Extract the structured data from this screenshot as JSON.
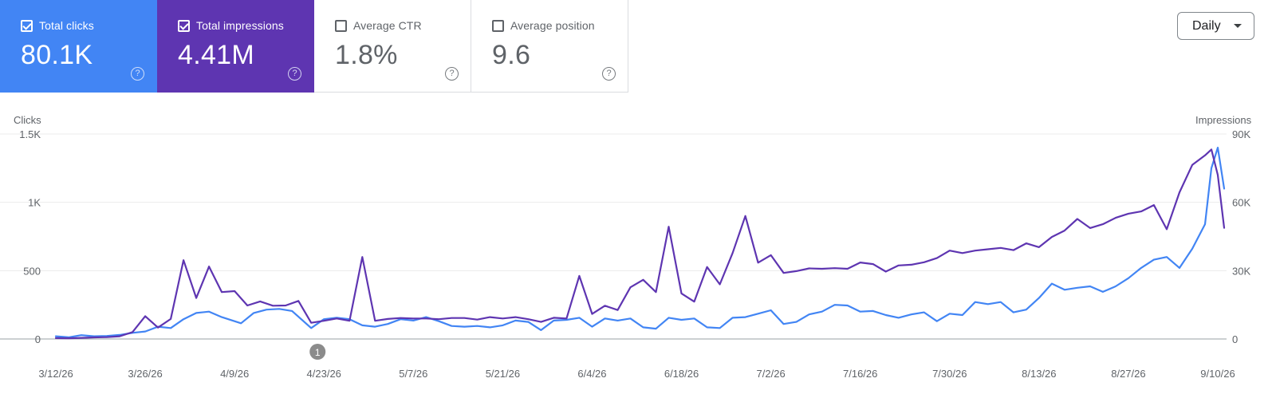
{
  "metrics": [
    {
      "label": "Total clicks",
      "value": "80.1K",
      "checked": true
    },
    {
      "label": "Total impressions",
      "value": "4.41M",
      "checked": true
    },
    {
      "label": "Average CTR",
      "value": "1.8%",
      "checked": false
    },
    {
      "label": "Average position",
      "value": "9.6",
      "checked": false
    }
  ],
  "help_glyph": "?",
  "granularity": {
    "selected": "Daily"
  },
  "colors": {
    "clicks": "#4285f4",
    "impressions": "#5e35b1",
    "grid": "#ececec",
    "axis_text": "#5f6368"
  },
  "icons": {
    "checkbox": "checkbox-icon",
    "help": "help-circle-icon",
    "dropdown": "caret-down-icon",
    "annotation": "annotation-marker"
  },
  "chart_data": {
    "type": "line",
    "ylabel_left": "Clicks",
    "ylabel_right": "Impressions",
    "yticks_left": [
      "0",
      "500",
      "1K",
      "1.5K"
    ],
    "yticks_right": [
      "0",
      "30K",
      "60K",
      "90K"
    ],
    "ylim_left": [
      0,
      1500
    ],
    "ylim_right": [
      0,
      90000
    ],
    "x_start": "2026-03-12",
    "x_end": "2026-09-11",
    "xticks": [
      "3/12/26",
      "3/26/26",
      "4/9/26",
      "4/23/26",
      "5/7/26",
      "5/21/26",
      "6/4/26",
      "6/18/26",
      "7/2/26",
      "7/16/26",
      "7/30/26",
      "8/13/26",
      "8/27/26",
      "9/10/26"
    ],
    "annotation": {
      "label": "1",
      "date": "2026-04-22"
    },
    "grid": true,
    "series": [
      {
        "name": "Clicks",
        "axis": "left",
        "color": "#4285f4",
        "points": [
          [
            "2026-03-12",
            20
          ],
          [
            "2026-03-14",
            12
          ],
          [
            "2026-03-16",
            28
          ],
          [
            "2026-03-18",
            20
          ],
          [
            "2026-03-20",
            22
          ],
          [
            "2026-03-22",
            30
          ],
          [
            "2026-03-24",
            45
          ],
          [
            "2026-03-26",
            55
          ],
          [
            "2026-03-28",
            90
          ],
          [
            "2026-03-30",
            80
          ],
          [
            "2026-04-01",
            145
          ],
          [
            "2026-04-03",
            190
          ],
          [
            "2026-04-05",
            200
          ],
          [
            "2026-04-07",
            160
          ],
          [
            "2026-04-10",
            115
          ],
          [
            "2026-04-12",
            190
          ],
          [
            "2026-04-14",
            215
          ],
          [
            "2026-04-16",
            220
          ],
          [
            "2026-04-18",
            205
          ],
          [
            "2026-04-21",
            80
          ],
          [
            "2026-04-23",
            145
          ],
          [
            "2026-04-25",
            155
          ],
          [
            "2026-04-27",
            145
          ],
          [
            "2026-04-29",
            100
          ],
          [
            "2026-05-01",
            90
          ],
          [
            "2026-05-03",
            110
          ],
          [
            "2026-05-05",
            145
          ],
          [
            "2026-05-07",
            135
          ],
          [
            "2026-05-09",
            160
          ],
          [
            "2026-05-11",
            130
          ],
          [
            "2026-05-13",
            95
          ],
          [
            "2026-05-15",
            90
          ],
          [
            "2026-05-17",
            95
          ],
          [
            "2026-05-19",
            85
          ],
          [
            "2026-05-21",
            100
          ],
          [
            "2026-05-23",
            135
          ],
          [
            "2026-05-25",
            125
          ],
          [
            "2026-05-27",
            65
          ],
          [
            "2026-05-29",
            135
          ],
          [
            "2026-05-31",
            140
          ],
          [
            "2026-06-02",
            155
          ],
          [
            "2026-06-04",
            90
          ],
          [
            "2026-06-06",
            150
          ],
          [
            "2026-06-08",
            135
          ],
          [
            "2026-06-10",
            150
          ],
          [
            "2026-06-12",
            85
          ],
          [
            "2026-06-14",
            75
          ],
          [
            "2026-06-16",
            155
          ],
          [
            "2026-06-18",
            140
          ],
          [
            "2026-06-20",
            150
          ],
          [
            "2026-06-22",
            85
          ],
          [
            "2026-06-24",
            80
          ],
          [
            "2026-06-26",
            155
          ],
          [
            "2026-06-28",
            160
          ],
          [
            "2026-06-30",
            185
          ],
          [
            "2026-07-02",
            210
          ],
          [
            "2026-07-04",
            110
          ],
          [
            "2026-07-06",
            125
          ],
          [
            "2026-07-08",
            180
          ],
          [
            "2026-07-10",
            200
          ],
          [
            "2026-07-12",
            250
          ],
          [
            "2026-07-14",
            245
          ],
          [
            "2026-07-16",
            200
          ],
          [
            "2026-07-18",
            205
          ],
          [
            "2026-07-20",
            175
          ],
          [
            "2026-07-22",
            155
          ],
          [
            "2026-07-24",
            180
          ],
          [
            "2026-07-26",
            195
          ],
          [
            "2026-07-28",
            130
          ],
          [
            "2026-07-30",
            185
          ],
          [
            "2026-08-01",
            175
          ],
          [
            "2026-08-03",
            270
          ],
          [
            "2026-08-05",
            255
          ],
          [
            "2026-08-07",
            270
          ],
          [
            "2026-08-09",
            195
          ],
          [
            "2026-08-11",
            215
          ],
          [
            "2026-08-13",
            300
          ],
          [
            "2026-08-15",
            405
          ],
          [
            "2026-08-17",
            360
          ],
          [
            "2026-08-19",
            375
          ],
          [
            "2026-08-21",
            385
          ],
          [
            "2026-08-23",
            345
          ],
          [
            "2026-08-25",
            385
          ],
          [
            "2026-08-27",
            445
          ],
          [
            "2026-08-29",
            520
          ],
          [
            "2026-08-31",
            580
          ],
          [
            "2026-09-02",
            600
          ],
          [
            "2026-09-04",
            520
          ],
          [
            "2026-09-06",
            660
          ],
          [
            "2026-09-08",
            840
          ],
          [
            "2026-09-09",
            1250
          ],
          [
            "2026-09-10",
            1400
          ],
          [
            "2026-09-11",
            1100
          ]
        ]
      },
      {
        "name": "Impressions",
        "axis": "right",
        "color": "#5e35b1",
        "points": [
          [
            "2026-03-12",
            400
          ],
          [
            "2026-03-14",
            300
          ],
          [
            "2026-03-16",
            500
          ],
          [
            "2026-03-18",
            700
          ],
          [
            "2026-03-20",
            800
          ],
          [
            "2026-03-22",
            1200
          ],
          [
            "2026-03-24",
            3000
          ],
          [
            "2026-03-26",
            10000
          ],
          [
            "2026-03-28",
            5000
          ],
          [
            "2026-03-30",
            8800
          ],
          [
            "2026-04-01",
            34600
          ],
          [
            "2026-04-03",
            18000
          ],
          [
            "2026-04-05",
            31800
          ],
          [
            "2026-04-07",
            20600
          ],
          [
            "2026-04-09",
            21000
          ],
          [
            "2026-04-11",
            14700
          ],
          [
            "2026-04-13",
            16500
          ],
          [
            "2026-04-15",
            14600
          ],
          [
            "2026-04-17",
            14700
          ],
          [
            "2026-04-19",
            16700
          ],
          [
            "2026-04-21",
            7100
          ],
          [
            "2026-04-23",
            8000
          ],
          [
            "2026-04-25",
            9000
          ],
          [
            "2026-04-27",
            8000
          ],
          [
            "2026-04-29",
            36000
          ],
          [
            "2026-05-01",
            8000
          ],
          [
            "2026-05-03",
            8800
          ],
          [
            "2026-05-05",
            9200
          ],
          [
            "2026-05-07",
            9000
          ],
          [
            "2026-05-09",
            9000
          ],
          [
            "2026-05-11",
            8700
          ],
          [
            "2026-05-13",
            9200
          ],
          [
            "2026-05-15",
            9200
          ],
          [
            "2026-05-17",
            8500
          ],
          [
            "2026-05-19",
            9600
          ],
          [
            "2026-05-21",
            9000
          ],
          [
            "2026-05-23",
            9600
          ],
          [
            "2026-05-25",
            8700
          ],
          [
            "2026-05-27",
            7500
          ],
          [
            "2026-05-29",
            9300
          ],
          [
            "2026-05-31",
            9000
          ],
          [
            "2026-06-02",
            27700
          ],
          [
            "2026-06-04",
            11000
          ],
          [
            "2026-06-06",
            14600
          ],
          [
            "2026-06-08",
            12700
          ],
          [
            "2026-06-10",
            22700
          ],
          [
            "2026-06-12",
            26000
          ],
          [
            "2026-06-14",
            20600
          ],
          [
            "2026-06-16",
            49300
          ],
          [
            "2026-06-18",
            20000
          ],
          [
            "2026-06-20",
            16400
          ],
          [
            "2026-06-22",
            31600
          ],
          [
            "2026-06-24",
            24000
          ],
          [
            "2026-06-26",
            37700
          ],
          [
            "2026-06-28",
            54000
          ],
          [
            "2026-06-30",
            33500
          ],
          [
            "2026-07-02",
            36800
          ],
          [
            "2026-07-04",
            29000
          ],
          [
            "2026-07-06",
            29800
          ],
          [
            "2026-07-08",
            31000
          ],
          [
            "2026-07-10",
            30800
          ],
          [
            "2026-07-12",
            31100
          ],
          [
            "2026-07-14",
            30800
          ],
          [
            "2026-07-16",
            33600
          ],
          [
            "2026-07-18",
            32900
          ],
          [
            "2026-07-20",
            29600
          ],
          [
            "2026-07-22",
            32300
          ],
          [
            "2026-07-24",
            32600
          ],
          [
            "2026-07-26",
            33700
          ],
          [
            "2026-07-28",
            35500
          ],
          [
            "2026-07-30",
            38800
          ],
          [
            "2026-08-01",
            37700
          ],
          [
            "2026-08-03",
            38800
          ],
          [
            "2026-08-05",
            39400
          ],
          [
            "2026-08-07",
            40000
          ],
          [
            "2026-08-09",
            39000
          ],
          [
            "2026-08-11",
            42000
          ],
          [
            "2026-08-13",
            40300
          ],
          [
            "2026-08-15",
            44800
          ],
          [
            "2026-08-17",
            47600
          ],
          [
            "2026-08-19",
            52700
          ],
          [
            "2026-08-21",
            48700
          ],
          [
            "2026-08-23",
            50400
          ],
          [
            "2026-08-25",
            53200
          ],
          [
            "2026-08-27",
            55000
          ],
          [
            "2026-08-29",
            56000
          ],
          [
            "2026-08-31",
            58800
          ],
          [
            "2026-09-02",
            48200
          ],
          [
            "2026-09-04",
            64400
          ],
          [
            "2026-09-06",
            76400
          ],
          [
            "2026-09-08",
            80600
          ],
          [
            "2026-09-09",
            83200
          ],
          [
            "2026-09-10",
            72000
          ],
          [
            "2026-09-11",
            48800
          ]
        ]
      }
    ]
  }
}
